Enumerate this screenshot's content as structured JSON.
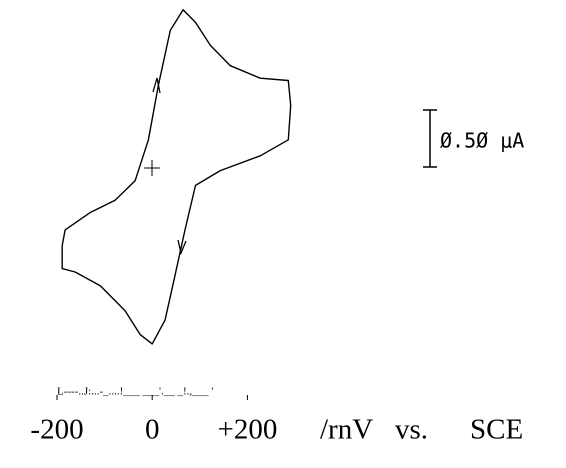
{
  "chart_data": {
    "type": "line",
    "color": "#000000",
    "x": [
      -183,
      -131,
      -78,
      -36,
      -8,
      13,
      38,
      65,
      91,
      122,
      164,
      227,
      286,
      291,
      286,
      227,
      143,
      91,
      69,
      48,
      27,
      0,
      -25,
      -57,
      -109,
      -162,
      -189,
      -189,
      -183
    ],
    "values": [
      -0.54,
      -0.39,
      -0.28,
      -0.11,
      0.25,
      0.73,
      1.21,
      1.39,
      1.28,
      1.08,
      0.9,
      0.79,
      0.77,
      0.55,
      0.25,
      0.11,
      -0.02,
      -0.15,
      -0.54,
      -0.94,
      -1.33,
      -1.54,
      -1.46,
      -1.25,
      -1.03,
      -0.91,
      -0.88,
      -0.68,
      -0.54
    ],
    "xlim": [
      -200,
      300
    ],
    "ylim": [
      -1.55,
      1.45
    ],
    "xticks": [
      -200,
      0,
      {
        "value": 200,
        "label": "+200"
      }
    ],
    "xlabel_parts": [
      "/rnV",
      "vs.",
      "SCE"
    ],
    "tick_scan_text": "L----..J:...-_....!___ ___'.__ _!.,___ '",
    "scale_bar": {
      "value": 0.5,
      "label": "Ø.5Ø μA"
    }
  }
}
